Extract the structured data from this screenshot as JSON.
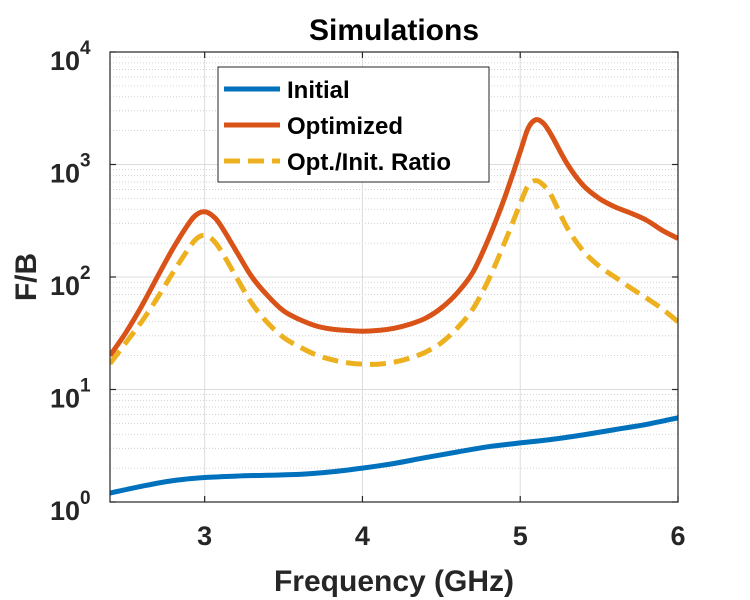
{
  "chart_data": {
    "type": "line",
    "title": "Simulations",
    "xlabel": "Frequency (GHz)",
    "ylabel": "F/B",
    "xlim": [
      2.4,
      6.0
    ],
    "ylim": [
      1,
      10000
    ],
    "yscale": "log",
    "grid": true,
    "legend_position": "top-left",
    "xticks": [
      {
        "value": 3,
        "label": "3"
      },
      {
        "value": 4,
        "label": "4"
      },
      {
        "value": 5,
        "label": "5"
      },
      {
        "value": 6,
        "label": "6"
      }
    ],
    "yticks": [
      {
        "value": 1,
        "base": "10",
        "exp": "0"
      },
      {
        "value": 10,
        "base": "10",
        "exp": "1"
      },
      {
        "value": 100,
        "base": "10",
        "exp": "2"
      },
      {
        "value": 1000,
        "base": "10",
        "exp": "3"
      },
      {
        "value": 10000,
        "base": "10",
        "exp": "4"
      }
    ],
    "series": [
      {
        "name": "Initial",
        "color": "#0072BD",
        "style": "solid",
        "x": [
          2.4,
          2.6,
          2.8,
          3.0,
          3.2,
          3.4,
          3.6,
          3.8,
          4.0,
          4.2,
          4.4,
          4.6,
          4.8,
          5.0,
          5.2,
          5.4,
          5.6,
          5.8,
          6.0
        ],
        "y": [
          1.2,
          1.38,
          1.55,
          1.65,
          1.7,
          1.73,
          1.76,
          1.85,
          2.0,
          2.2,
          2.48,
          2.78,
          3.1,
          3.35,
          3.6,
          3.95,
          4.4,
          4.9,
          5.6
        ]
      },
      {
        "name": "Optimized",
        "color": "#D95319",
        "style": "solid",
        "x": [
          2.4,
          2.5,
          2.6,
          2.7,
          2.8,
          2.9,
          2.95,
          3.0,
          3.05,
          3.1,
          3.2,
          3.3,
          3.4,
          3.5,
          3.6,
          3.7,
          3.8,
          3.9,
          4.0,
          4.1,
          4.2,
          4.3,
          4.4,
          4.5,
          4.6,
          4.7,
          4.8,
          4.9,
          5.0,
          5.05,
          5.1,
          5.15,
          5.2,
          5.3,
          5.4,
          5.5,
          5.6,
          5.7,
          5.8,
          5.9,
          6.0
        ],
        "y": [
          20,
          32,
          55,
          100,
          180,
          300,
          360,
          380,
          350,
          290,
          170,
          100,
          68,
          50,
          42,
          37,
          34.5,
          33.5,
          33,
          33.5,
          35,
          38,
          43,
          53,
          72,
          110,
          220,
          500,
          1300,
          2100,
          2500,
          2300,
          1800,
          1000,
          650,
          500,
          420,
          370,
          320,
          260,
          220
        ]
      },
      {
        "name": "Opt./Init. Ratio",
        "color": "#EDB120",
        "style": "dashed",
        "x": [
          2.4,
          2.5,
          2.6,
          2.7,
          2.8,
          2.9,
          2.95,
          3.0,
          3.05,
          3.1,
          3.2,
          3.3,
          3.4,
          3.5,
          3.6,
          3.7,
          3.8,
          3.9,
          4.0,
          4.1,
          4.2,
          4.3,
          4.4,
          4.5,
          4.6,
          4.7,
          4.8,
          4.9,
          5.0,
          5.05,
          5.1,
          5.15,
          5.2,
          5.3,
          5.4,
          5.5,
          5.6,
          5.7,
          5.8,
          5.9,
          6.0
        ],
        "y": [
          17,
          26,
          40,
          65,
          110,
          180,
          220,
          235,
          215,
          175,
          100,
          58,
          39,
          29,
          24,
          20.5,
          18.5,
          17.3,
          16.8,
          16.8,
          17.5,
          19,
          21.5,
          26,
          35,
          52,
          95,
          200,
          450,
          650,
          720,
          650,
          520,
          270,
          170,
          125,
          100,
          80,
          65,
          52,
          40
        ]
      }
    ]
  }
}
